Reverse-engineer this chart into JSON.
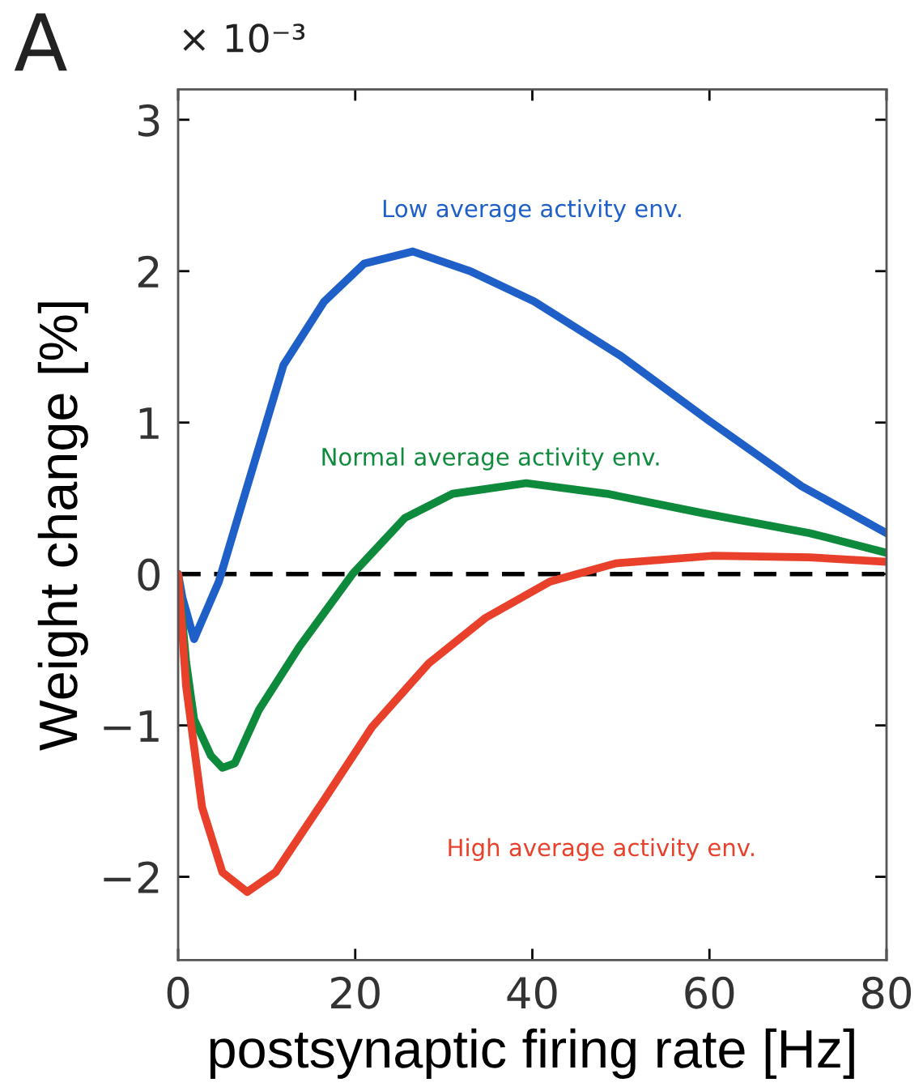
{
  "chart_data": {
    "type": "line",
    "xlabel": "postsynaptic firing rate [Hz]",
    "ylabel": "Weight change [%]",
    "annotations": [
      "A",
      "× 10⁻³"
    ],
    "xlim": [
      0,
      80
    ],
    "ylim": [
      -2.55,
      3.2
    ],
    "xticks": [
      0,
      20,
      40,
      60,
      80
    ],
    "yticks": [
      {
        "value": -2,
        "label": "−2"
      },
      {
        "value": -1,
        "label": "−1"
      },
      0,
      1,
      2,
      3
    ],
    "grid": false,
    "legend": false,
    "marker": "none",
    "line_style": "solid",
    "ref_lines": [
      {
        "axis": "y",
        "value": 0,
        "color": "#000000",
        "line_style": "dashed"
      }
    ],
    "series": [
      {
        "name": "Low average activity env.",
        "color": "#1f5fc8",
        "x": [
          0,
          0.5,
          1.8,
          4.6,
          7.3,
          11.9,
          16.5,
          21,
          26.5,
          33,
          40.2,
          50,
          60,
          70.4,
          80
        ],
        "values": [
          0,
          -0.16,
          -0.43,
          -0.05,
          0.48,
          1.38,
          1.8,
          2.05,
          2.13,
          2.0,
          1.8,
          1.44,
          1.01,
          0.58,
          0.27
        ]
      },
      {
        "name": "Normal average activity env.",
        "color": "#0e8a3c",
        "x": [
          0,
          0.9,
          1.8,
          3.7,
          5,
          6.4,
          9.1,
          13.7,
          19.7,
          25.6,
          31,
          39.3,
          48.4,
          59.4,
          71.3,
          80
        ],
        "values": [
          0,
          -0.58,
          -0.96,
          -1.2,
          -1.28,
          -1.25,
          -0.9,
          -0.48,
          0,
          0.37,
          0.53,
          0.6,
          0.53,
          0.4,
          0.27,
          0.14
        ]
      },
      {
        "name": "High average activity env.",
        "color": "#e8402a",
        "x": [
          0,
          0.9,
          2.7,
          5,
          7.8,
          11,
          16.5,
          21.9,
          28.3,
          34.7,
          42,
          49.4,
          60.3,
          71.3,
          80
        ],
        "values": [
          0,
          -0.74,
          -1.54,
          -1.97,
          -2.1,
          -1.97,
          -1.49,
          -1.01,
          -0.59,
          -0.29,
          -0.05,
          0.07,
          0.12,
          0.11,
          0.08
        ]
      }
    ]
  }
}
